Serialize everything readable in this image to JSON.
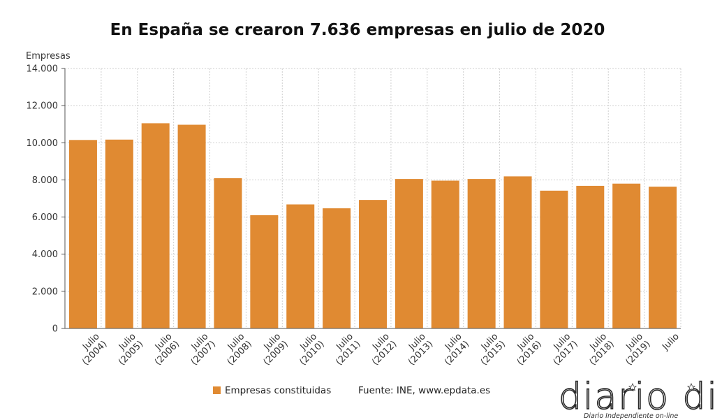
{
  "chart_data": {
    "type": "bar",
    "title": "En España se crearon 7.636 empresas en julio de 2020",
    "ylabel": "Empresas",
    "xlabel": "",
    "ylim": [
      0,
      14000
    ],
    "yticks": [
      0,
      2000,
      4000,
      6000,
      8000,
      10000,
      12000,
      14000
    ],
    "ytick_labels": [
      "0",
      "2.000",
      "4.000",
      "6.000",
      "8.000",
      "10.000",
      "12.000",
      "14.000"
    ],
    "grid": true,
    "categories": [
      [
        "Julio",
        "(2004)"
      ],
      [
        "Julio",
        "(2005)"
      ],
      [
        "Julio",
        "(2006)"
      ],
      [
        "Julio",
        "(2007)"
      ],
      [
        "Julio",
        "(2008)"
      ],
      [
        "Julio",
        "(2009)"
      ],
      [
        "Julio",
        "(2010)"
      ],
      [
        "Julio",
        "(2011)"
      ],
      [
        "Julio",
        "(2012)"
      ],
      [
        "Julio",
        "(2013)"
      ],
      [
        "Julio",
        "(2014)"
      ],
      [
        "Julio",
        "(2015)"
      ],
      [
        "Julio",
        "(2016)"
      ],
      [
        "Julio",
        "(2017)"
      ],
      [
        "Julio",
        "(2018)"
      ],
      [
        "Julio",
        "(2019)"
      ],
      [
        "Julio"
      ]
    ],
    "series": [
      {
        "name": "Empresas constituidas",
        "color": "#e08a32",
        "values": [
          10150,
          10170,
          11050,
          10970,
          8090,
          6100,
          6680,
          6470,
          6920,
          8050,
          7960,
          8050,
          8190,
          7420,
          7680,
          7800,
          7636
        ]
      }
    ],
    "legend_position": "bottom",
    "source": "Fuente: INE, www.epdata.es"
  },
  "watermark": {
    "logo_text": "diario dia",
    "tagline": "Diario Independiente on-line"
  }
}
